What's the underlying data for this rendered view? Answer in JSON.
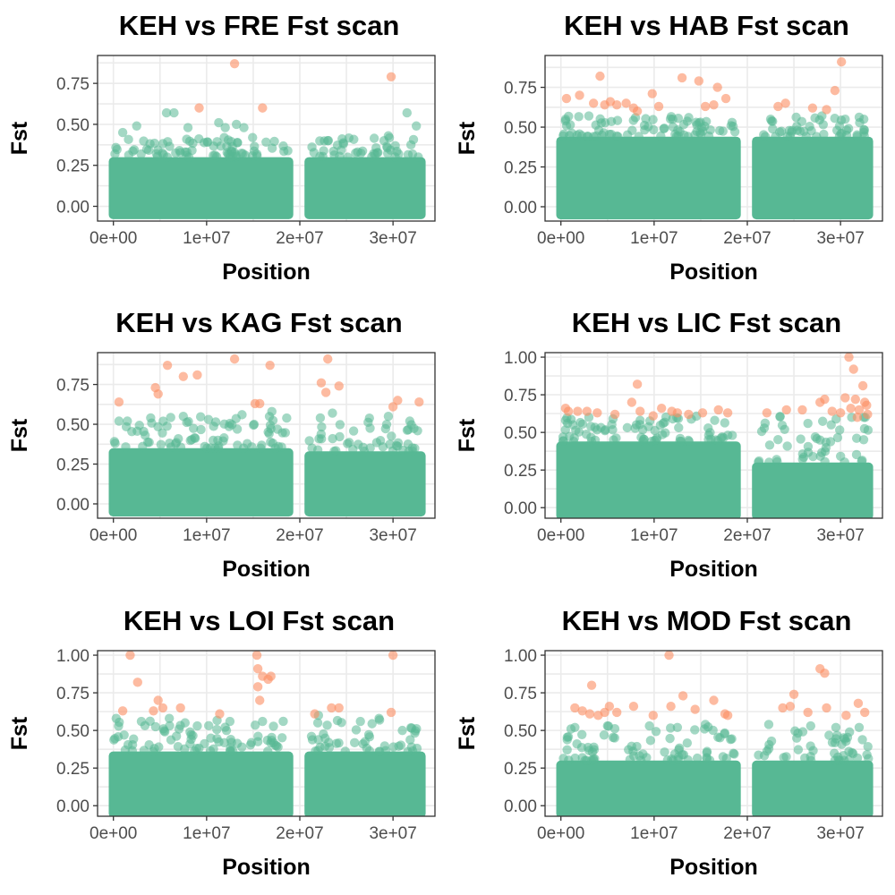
{
  "colors": {
    "background": "#57B894",
    "outlier": "#FC8D62"
  },
  "chart_data": [
    {
      "type": "scatter",
      "title": "KEH vs FRE Fst scan",
      "xlabel": "Position",
      "ylabel": "Fst",
      "xlim": [
        -1700000,
        34500000
      ],
      "ylim": [
        -0.09,
        0.92
      ],
      "x_ticks": [
        {
          "v": 0,
          "label": "0e+00"
        },
        {
          "v": 10000000,
          "label": "1e+07"
        },
        {
          "v": 20000000,
          "label": "2e+07"
        },
        {
          "v": 30000000,
          "label": "3e+07"
        }
      ],
      "y_ticks": [
        {
          "v": 0,
          "label": "0.00"
        },
        {
          "v": 0.25,
          "label": "0.25"
        },
        {
          "v": 0.5,
          "label": "0.50"
        },
        {
          "v": 0.75,
          "label": "0.75"
        }
      ],
      "bulk": [
        {
          "x0": 0,
          "x1": 18800000,
          "y1": 0.3,
          "scatter_top": 0.42,
          "n": 75
        },
        {
          "x0": 21000000,
          "x1": 33000000,
          "y1": 0.3,
          "scatter_top": 0.42,
          "n": 45
        }
      ],
      "green_points": [
        [
          2500000,
          0.49
        ],
        [
          5700000,
          0.57
        ],
        [
          6500000,
          0.57
        ],
        [
          8000000,
          0.48
        ],
        [
          11300000,
          0.51
        ],
        [
          12000000,
          0.48
        ],
        [
          13200000,
          0.5
        ],
        [
          14000000,
          0.48
        ],
        [
          29500000,
          0.43
        ],
        [
          31500000,
          0.57
        ],
        [
          32500000,
          0.49
        ],
        [
          1000000,
          0.45
        ],
        [
          23000000,
          0.4
        ]
      ],
      "outlier_points": [
        [
          9200000,
          0.6
        ],
        [
          13000000,
          0.87
        ],
        [
          16000000,
          0.6
        ],
        [
          29800000,
          0.79
        ]
      ]
    },
    {
      "type": "scatter",
      "title": "KEH vs HAB Fst scan",
      "xlabel": "Position",
      "ylabel": "Fst",
      "xlim": [
        -1700000,
        34500000
      ],
      "ylim": [
        -0.09,
        0.95
      ],
      "x_ticks": [
        {
          "v": 0,
          "label": "0e+00"
        },
        {
          "v": 10000000,
          "label": "1e+07"
        },
        {
          "v": 20000000,
          "label": "2e+07"
        },
        {
          "v": 30000000,
          "label": "3e+07"
        }
      ],
      "y_ticks": [
        {
          "v": 0,
          "label": "0.00"
        },
        {
          "v": 0.25,
          "label": "0.25"
        },
        {
          "v": 0.5,
          "label": "0.50"
        },
        {
          "v": 0.75,
          "label": "0.75"
        }
      ],
      "bulk": [
        {
          "x0": 0,
          "x1": 18800000,
          "y1": 0.44,
          "scatter_top": 0.57,
          "n": 75
        },
        {
          "x0": 21000000,
          "x1": 33000000,
          "y1": 0.44,
          "scatter_top": 0.57,
          "n": 45
        }
      ],
      "green_points": [
        [
          500000,
          0.55
        ],
        [
          3000000,
          0.57
        ],
        [
          8000000,
          0.56
        ],
        [
          12000000,
          0.55
        ],
        [
          14500000,
          0.53
        ],
        [
          22500000,
          0.55
        ],
        [
          28000000,
          0.57
        ],
        [
          30500000,
          0.55
        ],
        [
          32500000,
          0.55
        ]
      ],
      "outlier_points": [
        [
          600000,
          0.68
        ],
        [
          2000000,
          0.7
        ],
        [
          3500000,
          0.65
        ],
        [
          4200000,
          0.82
        ],
        [
          4700000,
          0.64
        ],
        [
          5300000,
          0.66
        ],
        [
          6000000,
          0.64
        ],
        [
          7000000,
          0.65
        ],
        [
          7800000,
          0.62
        ],
        [
          8200000,
          0.6
        ],
        [
          9800000,
          0.71
        ],
        [
          10500000,
          0.63
        ],
        [
          13000000,
          0.81
        ],
        [
          14800000,
          0.79
        ],
        [
          15500000,
          0.63
        ],
        [
          16400000,
          0.64
        ],
        [
          16800000,
          0.75
        ],
        [
          17700000,
          0.68
        ],
        [
          23300000,
          0.63
        ],
        [
          24100000,
          0.65
        ],
        [
          27000000,
          0.62
        ],
        [
          28500000,
          0.61
        ],
        [
          29400000,
          0.73
        ],
        [
          30100000,
          0.91
        ]
      ]
    },
    {
      "type": "scatter",
      "title": "KEH vs KAG Fst scan",
      "xlabel": "Position",
      "ylabel": "Fst",
      "xlim": [
        -1700000,
        34500000
      ],
      "ylim": [
        -0.09,
        0.95
      ],
      "x_ticks": [
        {
          "v": 0,
          "label": "0e+00"
        },
        {
          "v": 10000000,
          "label": "1e+07"
        },
        {
          "v": 20000000,
          "label": "2e+07"
        },
        {
          "v": 30000000,
          "label": "3e+07"
        }
      ],
      "y_ticks": [
        {
          "v": 0,
          "label": "0.00"
        },
        {
          "v": 0.25,
          "label": "0.25"
        },
        {
          "v": 0.5,
          "label": "0.50"
        },
        {
          "v": 0.75,
          "label": "0.75"
        }
      ],
      "bulk": [
        {
          "x0": 0,
          "x1": 18800000,
          "y1": 0.35,
          "scatter_top": 0.55,
          "n": 75
        },
        {
          "x0": 21000000,
          "x1": 33000000,
          "y1": 0.33,
          "scatter_top": 0.55,
          "n": 45
        }
      ],
      "green_points": [
        [
          600000,
          0.52
        ],
        [
          1500000,
          0.52
        ],
        [
          4000000,
          0.54
        ],
        [
          7500000,
          0.55
        ],
        [
          10200000,
          0.53
        ],
        [
          13800000,
          0.56
        ],
        [
          17000000,
          0.58
        ],
        [
          22200000,
          0.54
        ],
        [
          23500000,
          0.57
        ],
        [
          29500000,
          0.55
        ],
        [
          31800000,
          0.52
        ]
      ],
      "outlier_points": [
        [
          600000,
          0.64
        ],
        [
          4500000,
          0.73
        ],
        [
          4800000,
          0.69
        ],
        [
          5800000,
          0.87
        ],
        [
          7500000,
          0.8
        ],
        [
          9000000,
          0.81
        ],
        [
          13000000,
          0.91
        ],
        [
          15200000,
          0.63
        ],
        [
          15700000,
          0.63
        ],
        [
          16800000,
          0.87
        ],
        [
          22300000,
          0.76
        ],
        [
          23000000,
          0.91
        ],
        [
          22800000,
          0.7
        ],
        [
          24200000,
          0.74
        ],
        [
          30000000,
          0.61
        ],
        [
          30500000,
          0.65
        ],
        [
          32800000,
          0.64
        ]
      ]
    },
    {
      "type": "scatter",
      "title": "KEH vs LIC Fst scan",
      "xlabel": "Position",
      "ylabel": "Fst",
      "xlim": [
        -1700000,
        34500000
      ],
      "ylim": [
        -0.07,
        1.03
      ],
      "x_ticks": [
        {
          "v": 0,
          "label": "0e+00"
        },
        {
          "v": 10000000,
          "label": "1e+07"
        },
        {
          "v": 20000000,
          "label": "2e+07"
        },
        {
          "v": 30000000,
          "label": "3e+07"
        }
      ],
      "y_ticks": [
        {
          "v": 0,
          "label": "0.00"
        },
        {
          "v": 0.25,
          "label": "0.25"
        },
        {
          "v": 0.5,
          "label": "0.50"
        },
        {
          "v": 0.75,
          "label": "0.75"
        },
        {
          "v": 1,
          "label": "1.00"
        }
      ],
      "bulk": [
        {
          "x0": 0,
          "x1": 18800000,
          "y1": 0.44,
          "scatter_top": 0.62,
          "n": 75
        },
        {
          "x0": 21000000,
          "x1": 33000000,
          "y1": 0.3,
          "scatter_top": 0.62,
          "n": 45
        }
      ],
      "green_points": [
        [
          500000,
          0.58
        ],
        [
          3000000,
          0.6
        ],
        [
          8500000,
          0.58
        ],
        [
          12000000,
          0.59
        ],
        [
          16500000,
          0.58
        ],
        [
          24000000,
          0.52
        ],
        [
          26500000,
          0.56
        ],
        [
          29000000,
          0.55
        ],
        [
          31200000,
          0.6
        ],
        [
          32500000,
          0.6
        ]
      ],
      "outlier_points": [
        [
          500000,
          0.66
        ],
        [
          800000,
          0.64
        ],
        [
          1800000,
          0.64
        ],
        [
          2800000,
          0.64
        ],
        [
          3900000,
          0.63
        ],
        [
          5800000,
          0.62
        ],
        [
          7600000,
          0.7
        ],
        [
          8200000,
          0.82
        ],
        [
          8500000,
          0.64
        ],
        [
          9900000,
          0.61
        ],
        [
          10800000,
          0.66
        ],
        [
          11900000,
          0.64
        ],
        [
          12500000,
          0.63
        ],
        [
          13700000,
          0.62
        ],
        [
          15200000,
          0.63
        ],
        [
          16900000,
          0.65
        ],
        [
          17900000,
          0.63
        ],
        [
          22100000,
          0.63
        ],
        [
          24200000,
          0.65
        ],
        [
          25900000,
          0.65
        ],
        [
          27800000,
          0.7
        ],
        [
          28300000,
          0.72
        ],
        [
          29100000,
          0.64
        ],
        [
          30000000,
          0.63
        ],
        [
          30500000,
          0.73
        ],
        [
          30900000,
          1.0
        ],
        [
          31400000,
          0.92
        ],
        [
          31600000,
          0.72
        ],
        [
          32000000,
          0.65
        ],
        [
          32400000,
          0.81
        ],
        [
          32600000,
          0.7
        ],
        [
          32800000,
          0.68
        ],
        [
          32900000,
          0.62
        ],
        [
          31800000,
          0.6
        ],
        [
          31100000,
          0.66
        ]
      ]
    },
    {
      "type": "scatter",
      "title": "KEH vs LOI Fst scan",
      "xlabel": "Position",
      "ylabel": "Fst",
      "xlim": [
        -1700000,
        34500000
      ],
      "ylim": [
        -0.07,
        1.03
      ],
      "x_ticks": [
        {
          "v": 0,
          "label": "0e+00"
        },
        {
          "v": 10000000,
          "label": "1e+07"
        },
        {
          "v": 20000000,
          "label": "2e+07"
        },
        {
          "v": 30000000,
          "label": "3e+07"
        }
      ],
      "y_ticks": [
        {
          "v": 0,
          "label": "0.00"
        },
        {
          "v": 0.25,
          "label": "0.25"
        },
        {
          "v": 0.5,
          "label": "0.50"
        },
        {
          "v": 0.75,
          "label": "0.75"
        },
        {
          "v": 1,
          "label": "1.00"
        }
      ],
      "bulk": [
        {
          "x0": 0,
          "x1": 18800000,
          "y1": 0.36,
          "scatter_top": 0.58,
          "n": 75
        },
        {
          "x0": 21000000,
          "x1": 33000000,
          "y1": 0.36,
          "scatter_top": 0.58,
          "n": 45
        }
      ],
      "green_points": [
        [
          300000,
          0.58
        ],
        [
          3000000,
          0.56
        ],
        [
          6000000,
          0.58
        ],
        [
          9000000,
          0.53
        ],
        [
          12500000,
          0.56
        ],
        [
          16000000,
          0.56
        ],
        [
          22000000,
          0.6
        ],
        [
          26500000,
          0.56
        ],
        [
          28500000,
          0.58
        ],
        [
          31000000,
          0.5
        ]
      ],
      "outlier_points": [
        [
          1800000,
          1.0
        ],
        [
          1000000,
          0.63
        ],
        [
          2600000,
          0.82
        ],
        [
          4300000,
          0.63
        ],
        [
          4800000,
          0.7
        ],
        [
          5300000,
          0.65
        ],
        [
          7200000,
          0.65
        ],
        [
          11400000,
          0.61
        ],
        [
          15400000,
          1.0
        ],
        [
          15500000,
          0.91
        ],
        [
          15500000,
          0.79
        ],
        [
          15700000,
          0.7
        ],
        [
          16000000,
          0.86
        ],
        [
          16600000,
          0.84
        ],
        [
          16900000,
          0.86
        ],
        [
          21600000,
          0.61
        ],
        [
          23400000,
          0.65
        ],
        [
          24200000,
          0.65
        ],
        [
          29800000,
          0.62
        ],
        [
          30000000,
          1.0
        ]
      ]
    },
    {
      "type": "scatter",
      "title": "KEH vs MOD Fst scan",
      "xlabel": "Position",
      "ylabel": "Fst",
      "xlim": [
        -1700000,
        34500000
      ],
      "ylim": [
        -0.07,
        1.03
      ],
      "x_ticks": [
        {
          "v": 0,
          "label": "0e+00"
        },
        {
          "v": 10000000,
          "label": "1e+07"
        },
        {
          "v": 20000000,
          "label": "2e+07"
        },
        {
          "v": 30000000,
          "label": "3e+07"
        }
      ],
      "y_ticks": [
        {
          "v": 0,
          "label": "0.00"
        },
        {
          "v": 0.25,
          "label": "0.25"
        },
        {
          "v": 0.5,
          "label": "0.50"
        },
        {
          "v": 0.75,
          "label": "0.75"
        },
        {
          "v": 1,
          "label": "1.00"
        }
      ],
      "bulk": [
        {
          "x0": 0,
          "x1": 18800000,
          "y1": 0.3,
          "scatter_top": 0.53,
          "n": 75
        },
        {
          "x0": 21000000,
          "x1": 33000000,
          "y1": 0.3,
          "scatter_top": 0.53,
          "n": 45
        }
      ],
      "green_points": [
        [
          1500000,
          0.52
        ],
        [
          5000000,
          0.53
        ],
        [
          9500000,
          0.53
        ],
        [
          12500000,
          0.52
        ],
        [
          15500000,
          0.54
        ],
        [
          22300000,
          0.54
        ],
        [
          26800000,
          0.53
        ],
        [
          29500000,
          0.52
        ],
        [
          32000000,
          0.52
        ]
      ],
      "outlier_points": [
        [
          1500000,
          0.65
        ],
        [
          2300000,
          0.63
        ],
        [
          3300000,
          0.8
        ],
        [
          3100000,
          0.61
        ],
        [
          4000000,
          0.6
        ],
        [
          4700000,
          0.62
        ],
        [
          5200000,
          0.66
        ],
        [
          6000000,
          0.62
        ],
        [
          7800000,
          0.66
        ],
        [
          9900000,
          0.6
        ],
        [
          11600000,
          1.0
        ],
        [
          11800000,
          0.66
        ],
        [
          13100000,
          0.73
        ],
        [
          14400000,
          0.64
        ],
        [
          16400000,
          0.7
        ],
        [
          17600000,
          0.61
        ],
        [
          17900000,
          0.6
        ],
        [
          23800000,
          0.65
        ],
        [
          24600000,
          0.66
        ],
        [
          25000000,
          0.74
        ],
        [
          26500000,
          0.62
        ],
        [
          27800000,
          0.91
        ],
        [
          28300000,
          0.88
        ],
        [
          28500000,
          0.65
        ],
        [
          30600000,
          0.6
        ],
        [
          31900000,
          0.68
        ],
        [
          32600000,
          0.62
        ]
      ]
    }
  ]
}
